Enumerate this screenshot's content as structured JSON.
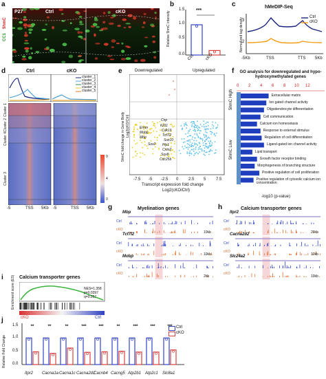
{
  "panel_letters": [
    "a",
    "b",
    "c",
    "d",
    "e",
    "f",
    "g",
    "h",
    "i",
    "j"
  ],
  "a": {
    "age": "P27",
    "ctrl": "Ctrl",
    "cko": "cKO",
    "stain1": "CC1",
    "stain2": "5hmC",
    "sig": "***"
  },
  "b": {
    "ylabel": "Relative 5hmC intensity",
    "ticks": [
      "0.0",
      "0.5",
      "1.0",
      "1.5"
    ],
    "categories": [
      "Ctrl",
      "cKO"
    ],
    "sig": "***"
  },
  "c": {
    "title": "hMeDIP-Seq",
    "ylabel": "Normalized tag density",
    "ticks": [
      "2",
      "3"
    ],
    "xticks": [
      "-5Kb",
      "TSS",
      "TTS",
      "5Kb"
    ],
    "legend": [
      "Ctrl",
      "cKO"
    ]
  },
  "d": {
    "ctrl": "Ctrl",
    "cko": "cKO",
    "legend": [
      "cluster_1",
      "cluster_2",
      "cluster_3",
      "cluster_4",
      "cluster_5"
    ],
    "xticks_ctrl": [
      "-5",
      "TSS",
      "5Kb"
    ],
    "xticks_cko": [
      "-5",
      "TSS",
      "5Kb"
    ],
    "clusters": [
      "Cluster 1",
      "Cluster 2",
      "Cluster 3",
      "Cluster 4",
      "Cluster 5"
    ],
    "colorbar": [
      "0",
      "1",
      "2",
      "3",
      "4",
      "5",
      "6",
      "7",
      "8",
      "9"
    ]
  },
  "e": {
    "down": "Downregulated",
    "up": "Upregulated",
    "ylabel": "5hmC fold change in Gene Body",
    "ylabel2": "Log2(cKO/Ctrl)",
    "xlabel": "Transcript expression fold change",
    "xlabel2": "Log2(cKO/Ctrl)",
    "yticks": [
      "0.5",
      "0",
      "-0.5",
      "-1",
      "-1.5",
      "-2",
      "-2.5",
      "-3",
      "-3.5",
      "-4",
      "-4.5",
      "-5"
    ],
    "xticks": [
      "-7.5",
      "-5",
      "-2.5",
      "0",
      "2.5",
      "5",
      "7.5"
    ],
    "genes": [
      "Cnp",
      "Kif11",
      "Cdk19",
      "Tcf7l2",
      "Sox10",
      "Plp1",
      "Cntn2",
      "Sox8",
      "Cdc25b",
      "Ermn",
      "Mobp",
      "Mbp",
      "Sox2"
    ]
  },
  "f": {
    "title": "GO analysis for downregulated and hypo-hydroxymethylated genes",
    "axis_ticks": [
      "0",
      "2",
      "4",
      "6",
      "8",
      "10",
      "12"
    ],
    "xlabel": "-log10 (p-value)",
    "hmc_high": "5hmC High",
    "hmc_low": "5hmC Low",
    "terms": [
      "Extracellular matrix",
      "Ion gated channel activity",
      "Oligodendrocyte differentiation",
      "Cell communication",
      "Calcium ion homeostasis",
      "Response to external stimulus",
      "Regulation of cell differentiation",
      "Ligand-gated ion channel activity",
      "Lipid transport",
      "Growth factor receptor binding",
      "Morphogenesis of branching structure",
      "Positive regulation of cell proliferation",
      "Positive regulation of cytosolic calcium ion concentration"
    ]
  },
  "g": {
    "title": "Myelination genes",
    "genes": [
      "Mbp",
      "Tcf7l2",
      "Mobp"
    ],
    "scales": [
      "10kb",
      "10kb",
      "2kb"
    ],
    "ctrl": "Ctrl",
    "cko": "cKO"
  },
  "h": {
    "title": "Calcium transporter genes",
    "genes": [
      "Itpr2",
      "Cacna2d2",
      "Slc24a2"
    ],
    "scales": [
      "20kb",
      "10kb",
      "10kb"
    ],
    "ctrl": "Ctrl",
    "cko": "cKO"
  },
  "i": {
    "title": "Calcium transporter genes",
    "ylabel": "Enrichment score (ES)",
    "stats": [
      "NES=1.358",
      "p=0.0397",
      "q=0.257"
    ],
    "cko": "cKO",
    "ctrl": "Ctrl"
  },
  "j": {
    "ylabel": "Relative Fold Change",
    "yticks": [
      "0.0",
      "0.5",
      "1.0",
      "1.5"
    ],
    "sig": [
      "**",
      "**",
      "**",
      "***",
      "***",
      "**",
      "***",
      "***",
      "***"
    ],
    "legend": [
      "Ctrl",
      "cKO"
    ],
    "colors": {
      "ctrl": "#3344c8",
      "cko": "#d94040"
    }
  },
  "chart_data": [
    {
      "type": "bar",
      "panel": "b",
      "categories": [
        "Ctrl",
        "cKO"
      ],
      "values": [
        1.0,
        0.15
      ],
      "ylim": [
        0,
        1.5
      ]
    },
    {
      "type": "bar",
      "panel": "j",
      "categories": [
        "Itpr2",
        "Cacna1a",
        "Cacna1c",
        "Cacna2d1",
        "Cacnb4",
        "Cacng5",
        "Atp2b1",
        "Atp2c1",
        "Slc8a1"
      ],
      "series": [
        {
          "name": "Ctrl",
          "values": [
            1.0,
            1.0,
            1.0,
            1.0,
            1.0,
            1.0,
            1.0,
            1.0,
            1.0
          ]
        },
        {
          "name": "cKO",
          "values": [
            0.48,
            0.42,
            0.62,
            0.46,
            0.48,
            0.5,
            0.47,
            0.47,
            0.55
          ]
        }
      ],
      "ylim": [
        0,
        1.5
      ]
    },
    {
      "type": "bar",
      "panel": "f",
      "categories": [
        "Extracellular matrix",
        "Ion gated channel activity",
        "Oligodendrocyte differentiation",
        "Cell communication",
        "Calcium ion homeostasis",
        "Response to external stimulus",
        "Regulation of cell differentiation",
        "Ligand-gated ion channel activity",
        "Lipid transport",
        "Growth factor receptor binding",
        "Morphogenesis of branching structure",
        "Positive regulation of cell proliferation",
        "Positive regulation of cytosolic calcium ion concentration"
      ],
      "values": [
        12,
        11,
        10,
        8.5,
        7,
        8.5,
        9,
        10,
        5,
        7,
        6,
        8,
        5.5
      ],
      "xlim": [
        0,
        12
      ]
    },
    {
      "type": "line",
      "panel": "c",
      "x": [
        "-5Kb",
        "TSS",
        "TTS",
        "5Kb"
      ],
      "series": [
        {
          "name": "Ctrl"
        },
        {
          "name": "cKO"
        }
      ]
    },
    {
      "type": "scatter",
      "panel": "e",
      "x_range": [
        -7.5,
        7.5
      ],
      "y_range": [
        -5,
        0.5
      ]
    }
  ]
}
